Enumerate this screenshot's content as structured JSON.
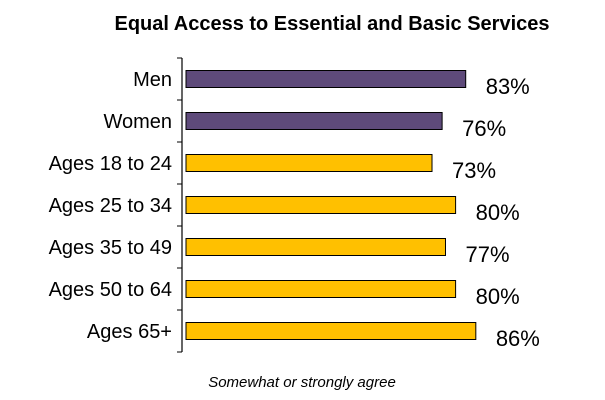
{
  "chart_data": {
    "type": "bar",
    "orientation": "horizontal",
    "title": "Equal Access to Essential and Basic Services",
    "categories": [
      "Men",
      "Women",
      "Ages 18 to 24",
      "Ages 25 to 34",
      "Ages 35 to 49",
      "Ages 50 to 64",
      "Ages 65+"
    ],
    "values": [
      83,
      76,
      73,
      80,
      77,
      80,
      86
    ],
    "value_labels": [
      "83%",
      "76%",
      "73%",
      "80%",
      "77%",
      "80%",
      "86%"
    ],
    "bar_colors": [
      "#5e4a7a",
      "#5e4a7a",
      "#ffc000",
      "#ffc000",
      "#ffc000",
      "#ffc000",
      "#ffc000"
    ],
    "bar_outline": "#000000",
    "xlabel": "Somewhat or strongly agree",
    "ylabel": "",
    "xlim": [
      0,
      100
    ],
    "grid": false,
    "legend": "none"
  }
}
